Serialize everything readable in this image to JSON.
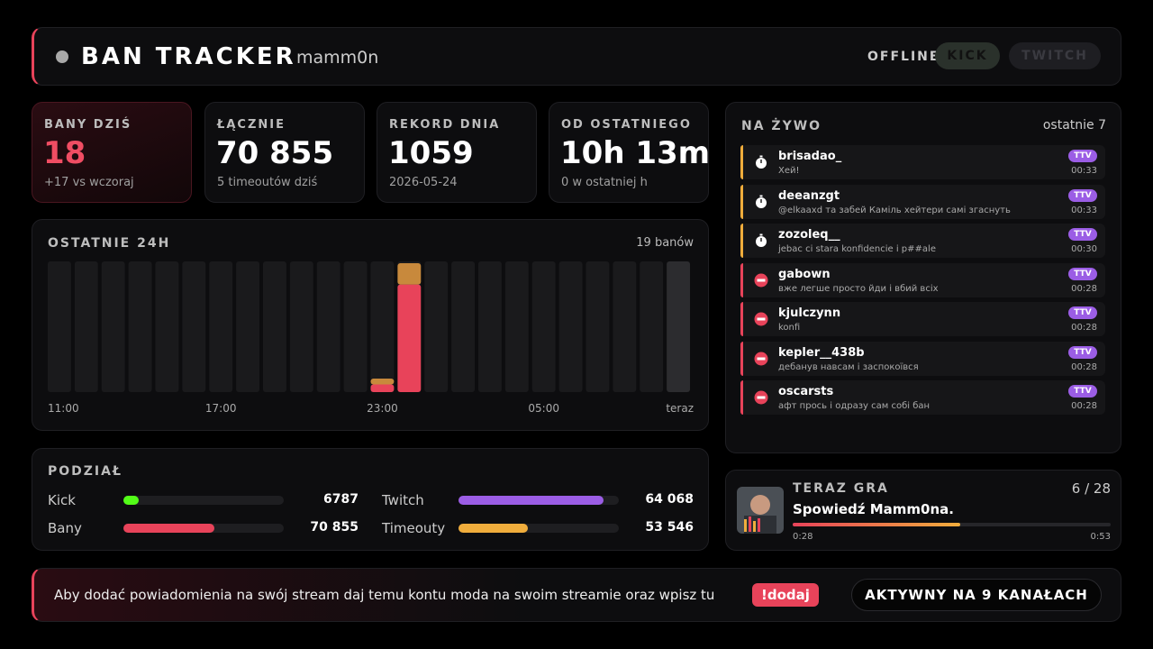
{
  "header": {
    "title": "BAN TRACKER",
    "channel": "mamm0n",
    "status": "OFFLINE",
    "platforms": [
      "KICK",
      "TWITCH"
    ]
  },
  "stats": [
    {
      "label": "BANY DZIŚ",
      "value": "18",
      "note": "+17 vs wczoraj"
    },
    {
      "label": "ŁĄCZNIE",
      "value": "70 855",
      "note": "5 timeoutów dziś"
    },
    {
      "label": "REKORD DNIA",
      "value": "1059",
      "note": "2026-05-24"
    },
    {
      "label": "OD OSTATNIEGO",
      "value": "10h 13m",
      "note": "0 w ostatniej h"
    }
  ],
  "chart_data": {
    "type": "bar",
    "stacked": true,
    "title": "OSTATNIE 24H",
    "summary": "19 banów",
    "categories": [
      "11:00",
      null,
      null,
      null,
      null,
      null,
      "17:00",
      null,
      null,
      null,
      null,
      null,
      "23:00",
      null,
      null,
      null,
      null,
      null,
      "05:00",
      null,
      null,
      null,
      null,
      "teraz"
    ],
    "series": [
      {
        "color": "#e8435a",
        "values": [
          0,
          0,
          0,
          0,
          0,
          0,
          0,
          0,
          0,
          0,
          0,
          0,
          1,
          14,
          0,
          0,
          0,
          0,
          0,
          0,
          0,
          0,
          0,
          0
        ]
      },
      {
        "color": "#c8893c",
        "values": [
          0,
          0,
          0,
          0,
          0,
          0,
          0,
          0,
          0,
          0,
          0,
          0,
          1,
          3,
          0,
          0,
          0,
          0,
          0,
          0,
          0,
          0,
          0,
          0
        ]
      }
    ],
    "ylim": [
      0,
      17
    ]
  },
  "split": {
    "title": "PODZIAŁ",
    "groups": [
      [
        {
          "name": "Kick",
          "value": 6787,
          "color": "#53fc18"
        },
        {
          "name": "Twitch",
          "value": 64068,
          "value_label": "64 068",
          "color": "#9b5de5"
        }
      ],
      [
        {
          "name": "Bany",
          "value": 70855,
          "value_label": "70 855",
          "color": "#e8435a"
        },
        {
          "name": "Timeouty",
          "value": 53546,
          "value_label": "53 546",
          "color": "#f0ad3c"
        }
      ]
    ]
  },
  "live": {
    "title": "NA ŻYWO",
    "subtitle": "ostatnie 7",
    "items": [
      {
        "user": "brisadao_",
        "message": "Хей!",
        "badge": "TTV",
        "time": "00:33",
        "kind": "timeout"
      },
      {
        "user": "deeanzgt",
        "message": "@elkaaxd та забей Каміль хейтери самі згаснуть",
        "badge": "TTV",
        "time": "00:33",
        "kind": "timeout"
      },
      {
        "user": "zozoleq__",
        "message": "jebac ci stara konfidencie i p##ale",
        "badge": "TTV",
        "time": "00:30",
        "kind": "timeout"
      },
      {
        "user": "gabown",
        "message": "вже легше просто йди і вбий всіх",
        "badge": "TTV",
        "time": "00:28",
        "kind": "ban"
      },
      {
        "user": "kjulczynn",
        "message": "konfi",
        "badge": "TTV",
        "time": "00:28",
        "kind": "ban"
      },
      {
        "user": "kepler__438b",
        "message": "дебанув навсам і заспокоївся",
        "badge": "TTV",
        "time": "00:28",
        "kind": "ban"
      },
      {
        "user": "oscarsts",
        "message": "афт прось і одразу сам собі бан",
        "badge": "TTV",
        "time": "00:28",
        "kind": "ban"
      }
    ]
  },
  "now_playing": {
    "title": "TERAZ GRA",
    "position": "6 / 28",
    "song": "Spowiedź Mamm0na.",
    "elapsed": "0:28",
    "duration": "0:53"
  },
  "footer": {
    "text": "Aby dodać powiadomienia na swój stream daj temu kontu moda na swoim streamie oraz wpisz tu",
    "command": "!dodaj",
    "status": "AKTYWNY NA 9 KANAŁACH"
  }
}
